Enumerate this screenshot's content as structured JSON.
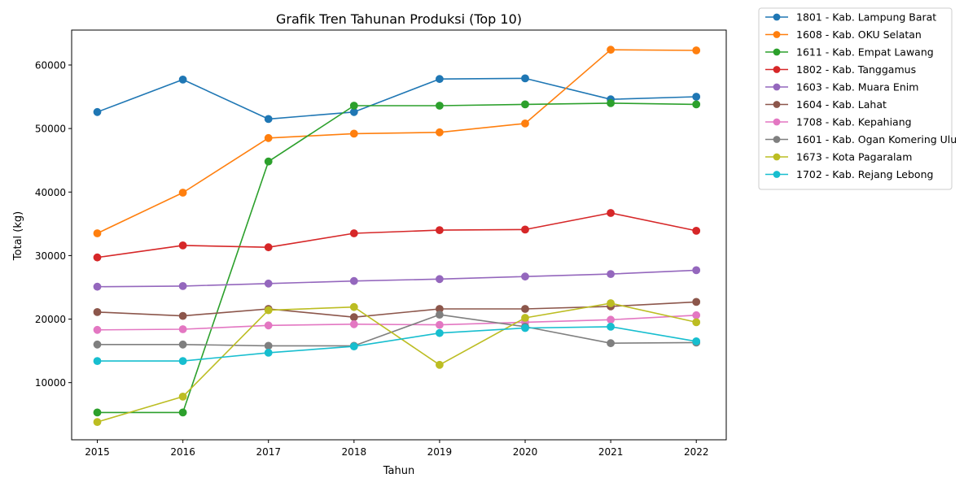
{
  "chart_data": {
    "type": "line",
    "title": "Grafik Tren Tahunan Produksi (Top 10)",
    "xlabel": "Tahun",
    "ylabel": "Total (kg)",
    "categories": [
      "2015",
      "2016",
      "2017",
      "2018",
      "2019",
      "2020",
      "2021",
      "2022"
    ],
    "xlim": [
      2014.7,
      2022.35
    ],
    "ylim": [
      1000,
      65500
    ],
    "yticks": [
      10000,
      20000,
      30000,
      40000,
      50000,
      60000
    ],
    "grid": false,
    "legend_position": "outside-top-right",
    "series": [
      {
        "name": "1801 - Kab. Lampung Barat",
        "color": "#1f77b4",
        "values": [
          52600,
          57700,
          51500,
          52600,
          57800,
          57900,
          54600,
          55000
        ]
      },
      {
        "name": "1608 - Kab. OKU Selatan",
        "color": "#ff7f0e",
        "values": [
          33500,
          39900,
          48500,
          49200,
          49400,
          50800,
          62400,
          62300
        ]
      },
      {
        "name": "1611 - Kab. Empat Lawang",
        "color": "#2ca02c",
        "values": [
          5300,
          5300,
          44800,
          53600,
          53600,
          53800,
          54000,
          53800
        ]
      },
      {
        "name": "1802 - Kab. Tanggamus",
        "color": "#d62728",
        "values": [
          29700,
          31600,
          31300,
          33500,
          34000,
          34100,
          36700,
          33900
        ]
      },
      {
        "name": "1603 - Kab. Muara Enim",
        "color": "#9467bd",
        "values": [
          25100,
          25200,
          25600,
          26000,
          26300,
          26700,
          27100,
          27700
        ]
      },
      {
        "name": "1604 - Kab. Lahat",
        "color": "#8c564b",
        "values": [
          21100,
          20500,
          21600,
          20300,
          21600,
          21600,
          22000,
          22700
        ]
      },
      {
        "name": "1708 - Kab. Kepahiang",
        "color": "#e377c2",
        "values": [
          18300,
          18400,
          19000,
          19200,
          19100,
          19500,
          19900,
          20600
        ]
      },
      {
        "name": "1601 - Kab. Ogan Komering Ulu",
        "color": "#7f7f7f",
        "values": [
          16000,
          16000,
          15800,
          15800,
          20700,
          18800,
          16200,
          16300
        ]
      },
      {
        "name": "1673 - Kota Pagaralam",
        "color": "#bcbd22",
        "values": [
          3800,
          7800,
          21400,
          21900,
          12800,
          20200,
          22500,
          19500
        ]
      },
      {
        "name": "1702 - Kab. Rejang Lebong",
        "color": "#17becf",
        "values": [
          13400,
          13400,
          14700,
          15700,
          17800,
          18600,
          18800,
          16500
        ]
      }
    ]
  }
}
